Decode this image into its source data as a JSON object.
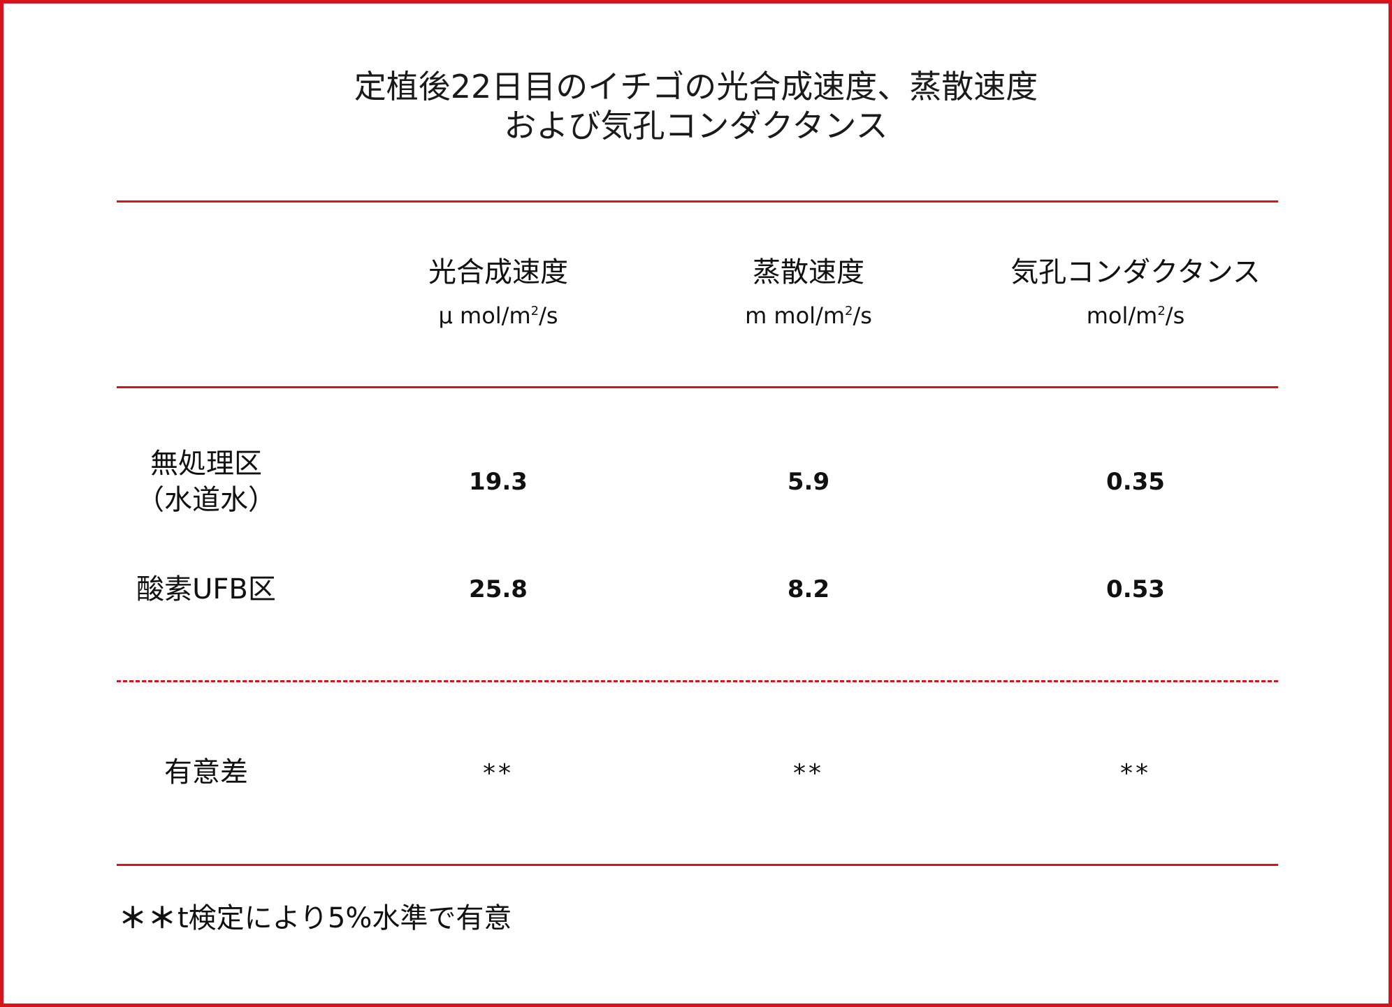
{
  "title": {
    "line1": "定植後22日目のイチゴの光合成速度、蒸散速度",
    "line2": "および気孔コンダクタンス"
  },
  "columns": [
    {
      "label": "光合成速度",
      "unit_prefix": "μ mol/m",
      "unit_sup": "2",
      "unit_suffix": "/s"
    },
    {
      "label": "蒸散速度",
      "unit_prefix": "m mol/m",
      "unit_sup": "2",
      "unit_suffix": "/s"
    },
    {
      "label": "気孔コンダクタンス",
      "unit_prefix": "mol/m",
      "unit_sup": "2",
      "unit_suffix": "/s"
    }
  ],
  "rows": [
    {
      "label_line1": "無処理区",
      "label_line2": "（水道水）",
      "values": [
        "19.3",
        "5.9",
        "0.35"
      ]
    },
    {
      "label_line1": "酸素UFB区",
      "label_line2": "",
      "values": [
        "25.8",
        "8.2",
        "0.53"
      ]
    }
  ],
  "significance": {
    "label": "有意差",
    "marks": [
      "**",
      "**",
      "**"
    ]
  },
  "footnote": {
    "stars": "＊＊",
    "text": "t検定により5%水準で有意"
  },
  "colors": {
    "accent": "#d6141c",
    "text": "#111111"
  }
}
